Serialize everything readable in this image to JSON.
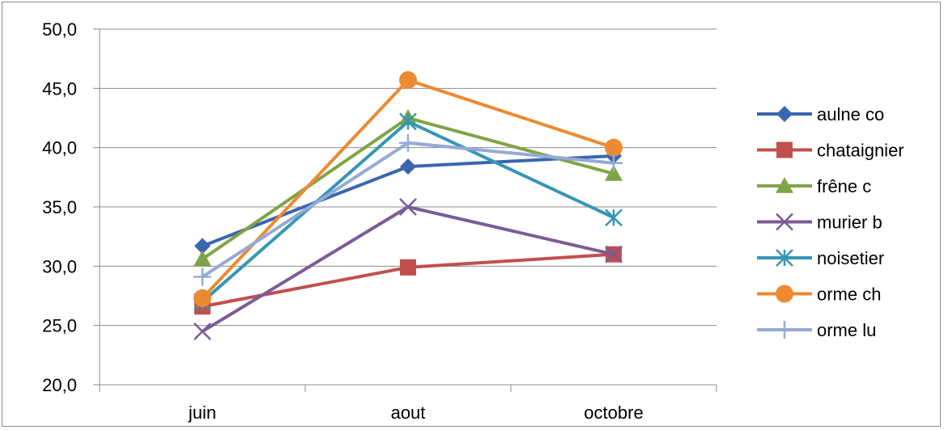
{
  "chart_data": {
    "type": "line",
    "title": "",
    "xlabel": "",
    "ylabel": "",
    "categories": [
      "juin",
      "aout",
      "octobre"
    ],
    "ylim": [
      20,
      50
    ],
    "y_ticks": [
      "20,0",
      "25,0",
      "30,0",
      "35,0",
      "40,0",
      "45,0",
      "50,0"
    ],
    "y_tick_values": [
      20,
      25,
      30,
      35,
      40,
      45,
      50
    ],
    "grid": "horizontal",
    "legend_position": "right",
    "series": [
      {
        "name": "aulne co",
        "values": [
          31.7,
          38.4,
          39.3
        ],
        "color": "#3a66b0",
        "marker": "diamond"
      },
      {
        "name": "chataignier",
        "values": [
          26.6,
          29.9,
          31.0
        ],
        "color": "#c0504d",
        "marker": "square"
      },
      {
        "name": "frêne c",
        "values": [
          30.6,
          42.5,
          37.8
        ],
        "color": "#7fa446",
        "marker": "triangle"
      },
      {
        "name": "murier b",
        "values": [
          24.5,
          35.0,
          31.0
        ],
        "color": "#7a5c98",
        "marker": "x"
      },
      {
        "name": "noisetier",
        "values": [
          27.0,
          42.2,
          34.1
        ],
        "color": "#3596b4",
        "marker": "asterisk"
      },
      {
        "name": "orme ch",
        "values": [
          27.3,
          45.7,
          40.0
        ],
        "color": "#ec8a32",
        "marker": "circle"
      },
      {
        "name": "orme lu",
        "values": [
          29.1,
          40.4,
          38.7
        ],
        "color": "#95aad6",
        "marker": "plus"
      }
    ]
  }
}
